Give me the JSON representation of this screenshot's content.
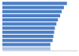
{
  "chart_data": {
    "type": "bar",
    "orientation": "horizontal",
    "tick_labels": false,
    "categories": [
      null,
      null,
      null,
      null,
      null,
      null,
      null,
      null,
      null,
      null,
      null,
      null
    ],
    "values": [
      86,
      82,
      79,
      77,
      74,
      72,
      70,
      69,
      68,
      67,
      64,
      64
    ],
    "colors": [
      "#4a7ec6",
      "#4a7ec6",
      "#4a7ec6",
      "#4a7ec6",
      "#4a7ec6",
      "#4a7ec6",
      "#4a7ec6",
      "#4a7ec6",
      "#4a7ec6",
      "#4a7ec6",
      "#4a7ec6",
      "#a9c3e6"
    ],
    "xlim": [
      0,
      100
    ],
    "xticks": [],
    "grid": false
  }
}
